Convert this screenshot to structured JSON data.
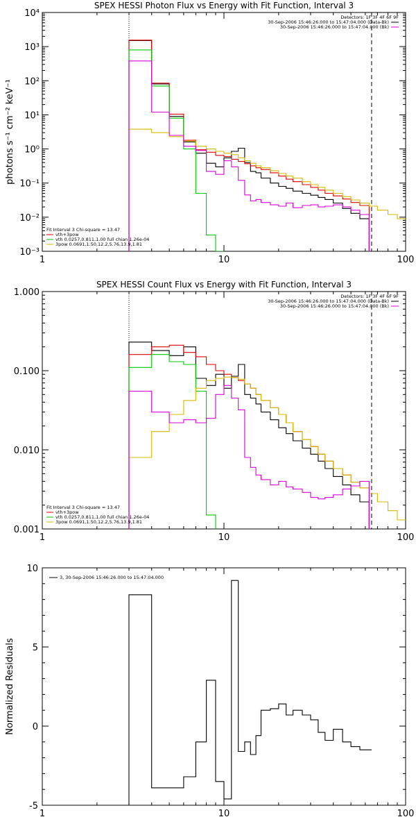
{
  "chart_data": [
    {
      "type": "line",
      "title": "SPEX HESSI Photon Flux vs Energy with Fit Function, Interval 3",
      "xlabel": "",
      "ylabel": "photons s⁻¹ cm⁻² keV⁻¹",
      "xscale": "log",
      "yscale": "log",
      "xlim": [
        1,
        100
      ],
      "ylim": [
        0.001,
        10000
      ],
      "x_ticks": [
        "1",
        "10",
        "100"
      ],
      "y_ticks": [
        "10⁻³",
        "10⁻²",
        "10⁻¹",
        "10⁰",
        "10¹",
        "10²",
        "10³",
        "10⁴"
      ],
      "legend_topright": [
        "Detectors: 1F 3F 4F 6F 9F",
        "30-Sep-2006 15:46:26.000 to 15:47:04.000 (Data-Bk)",
        "30-Sep-2006 15:46:26.000 to 15:47:04.000 (Bk)"
      ],
      "legend_bottomleft": [
        "Fit Interval 3    Chi-square = 13.47",
        "vth+3pow",
        "vth 0.0257,0.811,1.00   full chian 1.26e-04",
        "3pow 0.0691,1.50,12.2,5.76,13.9,1.81"
      ],
      "vlines": [
        {
          "x": 3.0,
          "style": "dotted"
        },
        {
          "x": 65,
          "style": "dashed"
        }
      ],
      "series": [
        {
          "name": "Data-Bk",
          "color": "#000000",
          "edges": [
            3,
            4,
            5,
            6,
            7,
            8,
            9,
            10,
            11,
            12,
            13,
            14,
            15,
            16,
            18,
            20,
            22,
            24,
            27,
            30,
            33,
            36,
            40,
            45,
            50,
            56,
            63
          ],
          "values": [
            1500,
            80,
            9,
            1.6,
            0.75,
            0.38,
            0.3,
            0.55,
            0.85,
            1.05,
            0.4,
            0.22,
            0.2,
            0.14,
            0.1,
            0.08,
            0.07,
            0.058,
            0.05,
            0.044,
            0.038,
            0.033,
            0.026,
            0.018,
            0.013,
            0.009
          ]
        },
        {
          "name": "vth+3pow",
          "color": "#e00000",
          "edges": [
            3,
            4,
            5,
            6,
            7,
            8,
            9,
            10,
            11,
            12,
            13,
            14,
            15,
            16,
            18,
            20,
            22,
            24,
            27,
            30,
            33,
            36,
            40,
            45,
            50,
            56,
            63
          ],
          "values": [
            1550,
            85,
            10.5,
            1.8,
            0.95,
            0.8,
            0.65,
            0.6,
            0.5,
            0.43,
            0.37,
            0.32,
            0.28,
            0.25,
            0.2,
            0.16,
            0.13,
            0.11,
            0.09,
            0.075,
            0.062,
            0.05,
            0.042,
            0.034,
            0.027,
            0.022
          ]
        },
        {
          "name": "vth",
          "color": "#00c800",
          "edges": [
            3,
            4,
            5,
            6,
            7,
            8,
            9,
            10
          ],
          "values": [
            800,
            70,
            8,
            1.0,
            0.05,
            0.003,
            0.001
          ]
        },
        {
          "name": "3pow",
          "color": "#d4b800",
          "edges": [
            3,
            4,
            5,
            6,
            7,
            8,
            9,
            10,
            11,
            12,
            13,
            14,
            15,
            16,
            18,
            20,
            22,
            24,
            27,
            30,
            33,
            36,
            40,
            45,
            50,
            56,
            63,
            70,
            80,
            90,
            100
          ],
          "values": [
            3.8,
            3.0,
            2.3,
            1.7,
            1.2,
            1.0,
            0.85,
            0.75,
            0.68,
            0.55,
            0.45,
            0.38,
            0.32,
            0.28,
            0.23,
            0.19,
            0.16,
            0.14,
            0.11,
            0.09,
            0.075,
            0.062,
            0.05,
            0.04,
            0.032,
            0.026,
            0.021,
            0.016,
            0.012,
            0.009
          ]
        },
        {
          "name": "Bk",
          "color": "#dc00dc",
          "edges": [
            3,
            4,
            5,
            6,
            7,
            8,
            9,
            10,
            11,
            12,
            13,
            14,
            15,
            16,
            18,
            20,
            22,
            24,
            27,
            30,
            33,
            36,
            40,
            45,
            50,
            56,
            63
          ],
          "values": [
            380,
            12,
            2.5,
            1.2,
            0.9,
            0.22,
            0.18,
            0.45,
            0.3,
            0.12,
            0.045,
            0.03,
            0.033,
            0.027,
            0.023,
            0.021,
            0.026,
            0.019,
            0.022,
            0.023,
            0.02,
            0.021,
            0.023,
            0.02,
            0.016,
            0.012
          ]
        }
      ]
    },
    {
      "type": "line",
      "title": "SPEX HESSI Count Flux vs Energy with Fit Function, Interval 3",
      "xlabel": "",
      "ylabel": "",
      "xscale": "log",
      "yscale": "log",
      "xlim": [
        1,
        100
      ],
      "ylim": [
        0.001,
        1.0
      ],
      "x_ticks": [
        "1",
        "10",
        "100"
      ],
      "y_ticks": [
        "0.001",
        "0.010",
        "0.100",
        "1.000"
      ],
      "legend_topright": [
        "Detectors: 1F 3F 4F 6F 9F",
        "30-Sep-2006 15:46:26.000 to 15:47:04.000 (Data-Bk)",
        "30-Sep-2006 15:46:26.000 to 15:47:04.000 (Bk)"
      ],
      "legend_bottomleft": [
        "Fit Interval 3    Chi-square = 13.47",
        "vth+3pow",
        "vth 0.0257,0.811,1.00   full chian 1.26e-04",
        "3pow 0.0691,1.50,12.2,5.76,13.9,1.81"
      ],
      "vlines": [
        {
          "x": 3.0,
          "style": "dotted"
        },
        {
          "x": 65,
          "style": "dashed"
        }
      ],
      "series": [
        {
          "name": "Data-Bk",
          "color": "#000000",
          "edges": [
            3,
            4,
            5,
            6,
            7,
            8,
            9,
            10,
            11,
            12,
            13,
            14,
            15,
            16,
            18,
            20,
            22,
            24,
            27,
            30,
            33,
            36,
            40,
            45,
            50,
            56,
            63
          ],
          "values": [
            0.23,
            0.18,
            0.155,
            0.2,
            0.08,
            0.065,
            0.09,
            0.06,
            0.085,
            0.12,
            0.05,
            0.045,
            0.038,
            0.03,
            0.024,
            0.019,
            0.016,
            0.013,
            0.0105,
            0.0088,
            0.0072,
            0.0058,
            0.0046,
            0.0036,
            0.0027,
            0.0022
          ]
        },
        {
          "name": "vth+3pow",
          "color": "#e00000",
          "edges": [
            3,
            4,
            5,
            6,
            7,
            8,
            9,
            10,
            11,
            12,
            13,
            14,
            15,
            16,
            18,
            20,
            22,
            24,
            27,
            30,
            33,
            36,
            40,
            45,
            50,
            56,
            63
          ],
          "values": [
            0.16,
            0.2,
            0.21,
            0.17,
            0.15,
            0.12,
            0.1,
            0.09,
            0.082,
            0.075,
            0.068,
            0.06,
            0.05,
            0.042,
            0.034,
            0.028,
            0.022,
            0.017,
            0.0135,
            0.011,
            0.0088,
            0.0072,
            0.0058,
            0.0048,
            0.0039,
            0.0033
          ]
        },
        {
          "name": "vth",
          "color": "#00c800",
          "edges": [
            3,
            4,
            5,
            6,
            7,
            8,
            9
          ],
          "values": [
            0.11,
            0.16,
            0.13,
            0.12,
            0.055,
            0.0015
          ]
        },
        {
          "name": "3pow",
          "color": "#d4b800",
          "edges": [
            3,
            4,
            5,
            6,
            7,
            8,
            9,
            10,
            11,
            12,
            13,
            14,
            15,
            16,
            18,
            20,
            22,
            24,
            27,
            30,
            33,
            36,
            40,
            45,
            50,
            56,
            63,
            70,
            80,
            90,
            100
          ],
          "values": [
            0.008,
            0.017,
            0.028,
            0.042,
            0.06,
            0.075,
            0.08,
            0.083,
            0.082,
            0.078,
            0.068,
            0.06,
            0.05,
            0.042,
            0.034,
            0.028,
            0.022,
            0.017,
            0.0135,
            0.011,
            0.0088,
            0.0072,
            0.0058,
            0.0048,
            0.0039,
            0.0033,
            0.0028,
            0.0022,
            0.0017,
            0.0013
          ]
        },
        {
          "name": "Bk",
          "color": "#dc00dc",
          "edges": [
            3,
            4,
            5,
            6,
            7,
            8,
            9,
            10,
            11,
            12,
            13,
            14,
            15,
            16,
            18,
            20,
            22,
            24,
            27,
            30,
            33,
            36,
            40,
            45,
            50,
            56,
            63
          ],
          "values": [
            0.055,
            0.03,
            0.022,
            0.024,
            0.022,
            0.025,
            0.05,
            0.065,
            0.045,
            0.032,
            0.008,
            0.006,
            0.0048,
            0.0042,
            0.0036,
            0.004,
            0.0034,
            0.0032,
            0.0029,
            0.0025,
            0.0024,
            0.0025,
            0.0027,
            0.0032,
            0.0035,
            0.004
          ]
        }
      ]
    },
    {
      "type": "line",
      "title": "",
      "xlabel": "",
      "ylabel": "Normalized Residuals",
      "xscale": "log",
      "yscale": "linear",
      "xlim": [
        1,
        100
      ],
      "ylim": [
        -5,
        10
      ],
      "x_ticks": [
        "1",
        "10",
        "100"
      ],
      "y_ticks": [
        "-5",
        "0",
        "5",
        "10"
      ],
      "legend": "3, 30-Sep-2006 15:46:26.000 to 15:47:04.000",
      "series": [
        {
          "name": "",
          "color": "#000000",
          "edges": [
            3,
            4,
            5,
            6,
            7,
            8,
            9,
            10,
            11,
            12,
            13,
            14,
            15,
            16,
            18,
            20,
            22,
            24,
            27,
            30,
            33,
            36,
            40,
            45,
            50,
            56,
            63,
            65
          ],
          "values": [
            8.3,
            -3.9,
            -3.9,
            -3.2,
            -1.0,
            2.9,
            -3.5,
            -4.6,
            9.2,
            -1.6,
            -1.0,
            -1.8,
            -0.6,
            1.0,
            1.1,
            1.4,
            0.7,
            1.0,
            0.7,
            0.4,
            -0.4,
            -0.9,
            -0.2,
            -1.0,
            -1.3,
            -1.5,
            -1.5
          ]
        }
      ]
    }
  ]
}
